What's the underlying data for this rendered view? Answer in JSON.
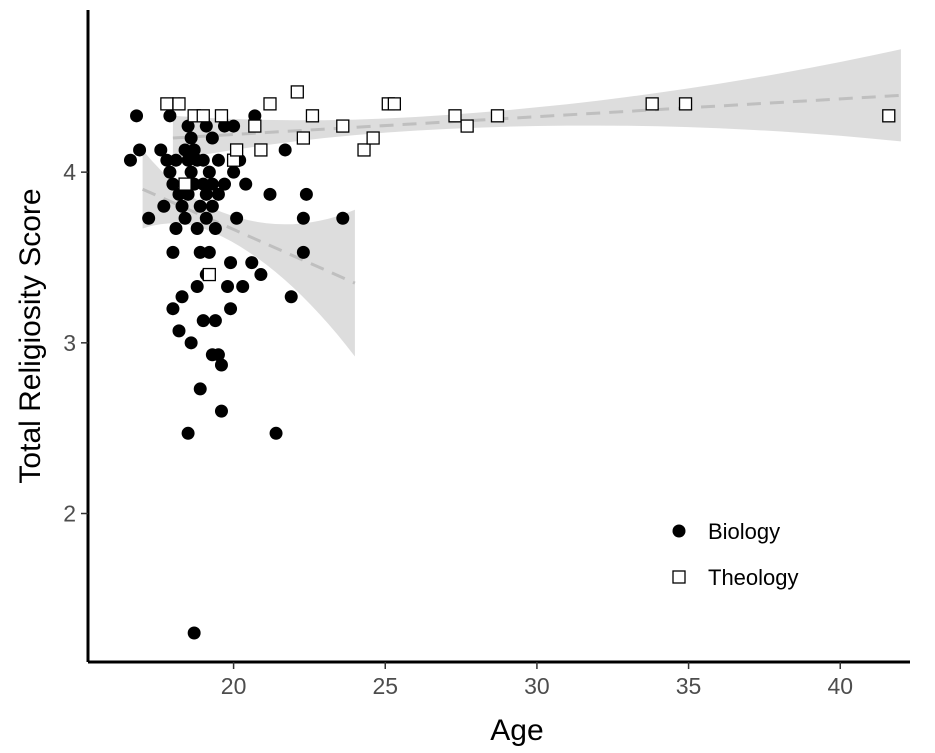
{
  "chart_data": {
    "type": "scatter",
    "xlabel": "Age",
    "ylabel": "Total Religiosity Score",
    "xlim": [
      15.2,
      42.3
    ],
    "ylim": [
      1.13,
      4.95
    ],
    "x_ticks": [
      20,
      25,
      30,
      35,
      40
    ],
    "y_ticks": [
      2,
      3,
      4
    ],
    "grid": false,
    "legend_position": "bottom-right",
    "series": [
      {
        "name": "Biology",
        "marker": "filled-circle",
        "color": "#000000",
        "points": [
          [
            16.6,
            4.07
          ],
          [
            16.8,
            4.33
          ],
          [
            16.9,
            4.13
          ],
          [
            17.2,
            3.73
          ],
          [
            17.6,
            4.13
          ],
          [
            17.7,
            3.8
          ],
          [
            17.8,
            4.07
          ],
          [
            17.9,
            4.33
          ],
          [
            17.9,
            4.0
          ],
          [
            18.0,
            3.93
          ],
          [
            18.0,
            4.4
          ],
          [
            18.0,
            3.53
          ],
          [
            18.0,
            3.2
          ],
          [
            18.1,
            4.07
          ],
          [
            18.1,
            3.67
          ],
          [
            18.2,
            3.87
          ],
          [
            18.2,
            3.07
          ],
          [
            18.2,
            4.4
          ],
          [
            18.3,
            3.27
          ],
          [
            18.3,
            3.8
          ],
          [
            18.4,
            4.13
          ],
          [
            18.4,
            3.73
          ],
          [
            18.4,
            3.93
          ],
          [
            18.5,
            4.27
          ],
          [
            18.5,
            4.07
          ],
          [
            18.5,
            3.87
          ],
          [
            18.5,
            2.47
          ],
          [
            18.6,
            4.2
          ],
          [
            18.6,
            4.0
          ],
          [
            18.6,
            3.0
          ],
          [
            18.7,
            3.93
          ],
          [
            18.7,
            4.13
          ],
          [
            18.7,
            1.3
          ],
          [
            18.8,
            3.67
          ],
          [
            18.8,
            3.33
          ],
          [
            18.8,
            4.07
          ],
          [
            18.9,
            3.8
          ],
          [
            18.9,
            2.73
          ],
          [
            18.9,
            3.53
          ],
          [
            19.0,
            3.93
          ],
          [
            19.0,
            4.07
          ],
          [
            19.0,
            3.13
          ],
          [
            19.1,
            3.87
          ],
          [
            19.1,
            4.27
          ],
          [
            19.1,
            3.4
          ],
          [
            19.1,
            3.73
          ],
          [
            19.2,
            3.53
          ],
          [
            19.2,
            4.0
          ],
          [
            19.3,
            3.93
          ],
          [
            19.3,
            4.2
          ],
          [
            19.3,
            3.8
          ],
          [
            19.3,
            2.93
          ],
          [
            19.4,
            3.67
          ],
          [
            19.4,
            3.13
          ],
          [
            19.5,
            3.87
          ],
          [
            19.5,
            4.07
          ],
          [
            19.5,
            2.93
          ],
          [
            19.6,
            2.87
          ],
          [
            19.6,
            2.6
          ],
          [
            19.7,
            4.27
          ],
          [
            19.7,
            3.93
          ],
          [
            19.8,
            3.33
          ],
          [
            19.9,
            3.47
          ],
          [
            19.9,
            3.2
          ],
          [
            20.0,
            4.27
          ],
          [
            20.0,
            4.0
          ],
          [
            20.1,
            3.73
          ],
          [
            20.2,
            4.07
          ],
          [
            20.3,
            3.33
          ],
          [
            20.4,
            3.93
          ],
          [
            20.6,
            3.47
          ],
          [
            20.7,
            4.33
          ],
          [
            20.9,
            3.4
          ],
          [
            21.2,
            3.87
          ],
          [
            21.4,
            2.47
          ],
          [
            21.7,
            4.13
          ],
          [
            21.9,
            3.27
          ],
          [
            22.3,
            3.73
          ],
          [
            22.3,
            3.53
          ],
          [
            22.4,
            3.87
          ],
          [
            23.6,
            3.73
          ]
        ],
        "trend": {
          "x": [
            17.0,
            24.0
          ],
          "y": [
            3.9,
            3.35
          ]
        }
      },
      {
        "name": "Theology",
        "marker": "open-square",
        "color": "#000000",
        "points": [
          [
            17.8,
            4.4
          ],
          [
            18.2,
            4.4
          ],
          [
            18.4,
            3.93
          ],
          [
            18.7,
            4.33
          ],
          [
            19.0,
            4.33
          ],
          [
            19.2,
            3.4
          ],
          [
            19.6,
            4.33
          ],
          [
            20.0,
            4.07
          ],
          [
            20.1,
            4.13
          ],
          [
            20.7,
            4.27
          ],
          [
            20.9,
            4.13
          ],
          [
            21.2,
            4.4
          ],
          [
            22.1,
            4.47
          ],
          [
            22.3,
            4.2
          ],
          [
            22.6,
            4.33
          ],
          [
            23.6,
            4.27
          ],
          [
            24.3,
            4.13
          ],
          [
            24.6,
            4.2
          ],
          [
            25.1,
            4.4
          ],
          [
            25.3,
            4.4
          ],
          [
            27.3,
            4.33
          ],
          [
            27.7,
            4.27
          ],
          [
            28.7,
            4.33
          ],
          [
            33.8,
            4.4
          ],
          [
            34.9,
            4.4
          ],
          [
            41.6,
            4.33
          ]
        ],
        "trend": {
          "x": [
            18.0,
            42.0
          ],
          "y": [
            4.2,
            4.45
          ]
        }
      }
    ]
  }
}
